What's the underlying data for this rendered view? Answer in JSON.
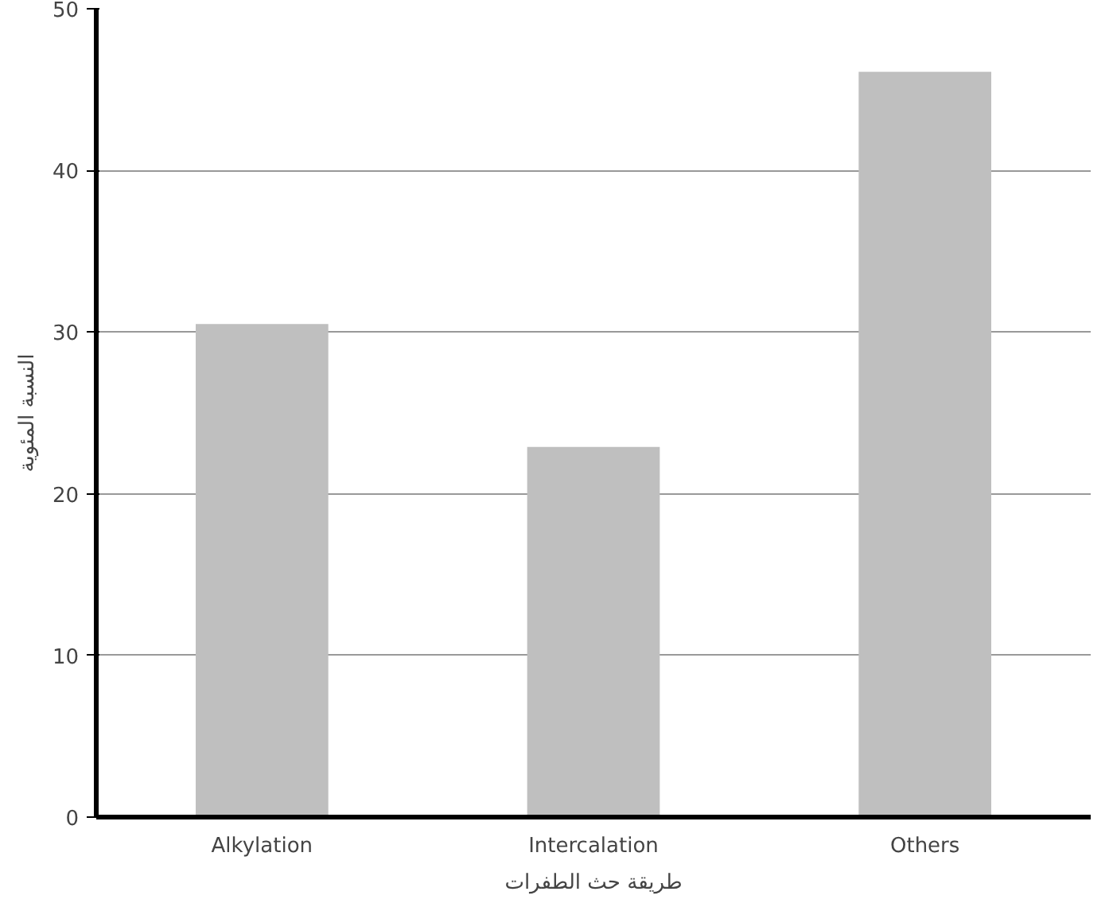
{
  "chart_data": {
    "type": "bar",
    "categories": [
      "Alkylation",
      "Intercalation",
      "Others"
    ],
    "values": [
      30.5,
      22.9,
      46.1
    ],
    "color": "#bfbfbf",
    "ylim": [
      0,
      50
    ],
    "yticks": [
      0,
      10,
      20,
      30,
      40,
      50
    ],
    "grid": "y",
    "xlabel": "طريقة حث الطفرات",
    "ylabel": "النسبة المئوية"
  }
}
